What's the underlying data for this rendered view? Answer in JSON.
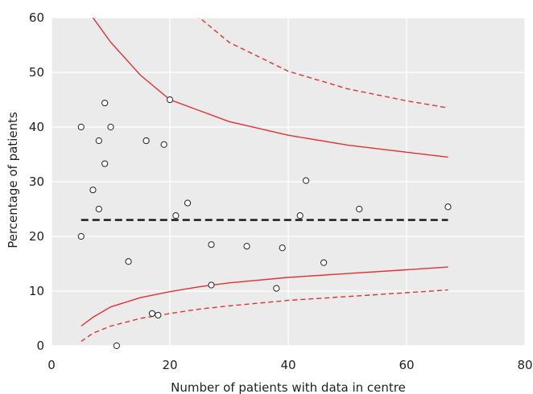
{
  "chart_data": {
    "type": "scatter",
    "title": "",
    "xlabel": "Number of patients with data in centre",
    "ylabel": "Percentage of patients",
    "xlim": [
      0,
      80
    ],
    "ylim": [
      0,
      60
    ],
    "xticks": [
      0,
      20,
      40,
      60,
      80
    ],
    "yticks": [
      0,
      10,
      20,
      30,
      40,
      50,
      60
    ],
    "grid": true,
    "background_color": "#ebebeb",
    "grid_color": "#ffffff",
    "points": [
      {
        "x": 5,
        "y": 40
      },
      {
        "x": 5,
        "y": 20
      },
      {
        "x": 7,
        "y": 28.5
      },
      {
        "x": 8,
        "y": 37.5
      },
      {
        "x": 8,
        "y": 25
      },
      {
        "x": 9,
        "y": 44.4
      },
      {
        "x": 9,
        "y": 33.3
      },
      {
        "x": 10,
        "y": 40
      },
      {
        "x": 11,
        "y": 0
      },
      {
        "x": 13,
        "y": 15.4
      },
      {
        "x": 16,
        "y": 37.5
      },
      {
        "x": 16,
        "y": 37.5
      },
      {
        "x": 17,
        "y": 5.9
      },
      {
        "x": 18,
        "y": 5.6
      },
      {
        "x": 19,
        "y": 36.8
      },
      {
        "x": 20,
        "y": 45
      },
      {
        "x": 21,
        "y": 23.8
      },
      {
        "x": 23,
        "y": 26.1
      },
      {
        "x": 27,
        "y": 18.5
      },
      {
        "x": 27,
        "y": 11.1
      },
      {
        "x": 33,
        "y": 18.2
      },
      {
        "x": 38,
        "y": 10.5
      },
      {
        "x": 39,
        "y": 17.9
      },
      {
        "x": 42,
        "y": 23.8
      },
      {
        "x": 43,
        "y": 30.2
      },
      {
        "x": 46,
        "y": 15.2
      },
      {
        "x": 52,
        "y": 25
      },
      {
        "x": 67,
        "y": 25.4
      }
    ],
    "mean_line": {
      "y": 23,
      "x_range": [
        5,
        67
      ],
      "style": "dashed",
      "color": "#222222"
    },
    "limit_lines": [
      {
        "style": "solid",
        "color": "#e53030",
        "x": [
          5,
          7,
          10,
          15,
          20,
          25,
          30,
          40,
          50,
          60,
          67
        ],
        "y": [
          76.5,
          60,
          55.5,
          49.5,
          45,
          43,
          41,
          38.5,
          36.7,
          35.4,
          34.5
        ]
      },
      {
        "style": "solid",
        "color": "#e53030",
        "x": [
          5,
          7,
          10,
          15,
          20,
          25,
          30,
          40,
          50,
          60,
          67
        ],
        "y": [
          3.6,
          5.2,
          7.1,
          8.8,
          9.9,
          10.8,
          11.5,
          12.5,
          13.2,
          13.9,
          14.4
        ]
      },
      {
        "style": "dashed",
        "color": "#e53030",
        "x": [
          5,
          10,
          20,
          25,
          30,
          40,
          50,
          60,
          67
        ],
        "y": [
          99,
          80,
          62,
          60,
          55.5,
          50.2,
          47,
          44.8,
          43.5
        ]
      },
      {
        "style": "dashed",
        "color": "#e53030",
        "x": [
          5,
          7,
          10,
          15,
          20,
          25,
          30,
          40,
          50,
          60,
          67
        ],
        "y": [
          0.8,
          2.3,
          3.6,
          5,
          5.9,
          6.7,
          7.3,
          8.3,
          9,
          9.7,
          10.2
        ]
      }
    ]
  }
}
